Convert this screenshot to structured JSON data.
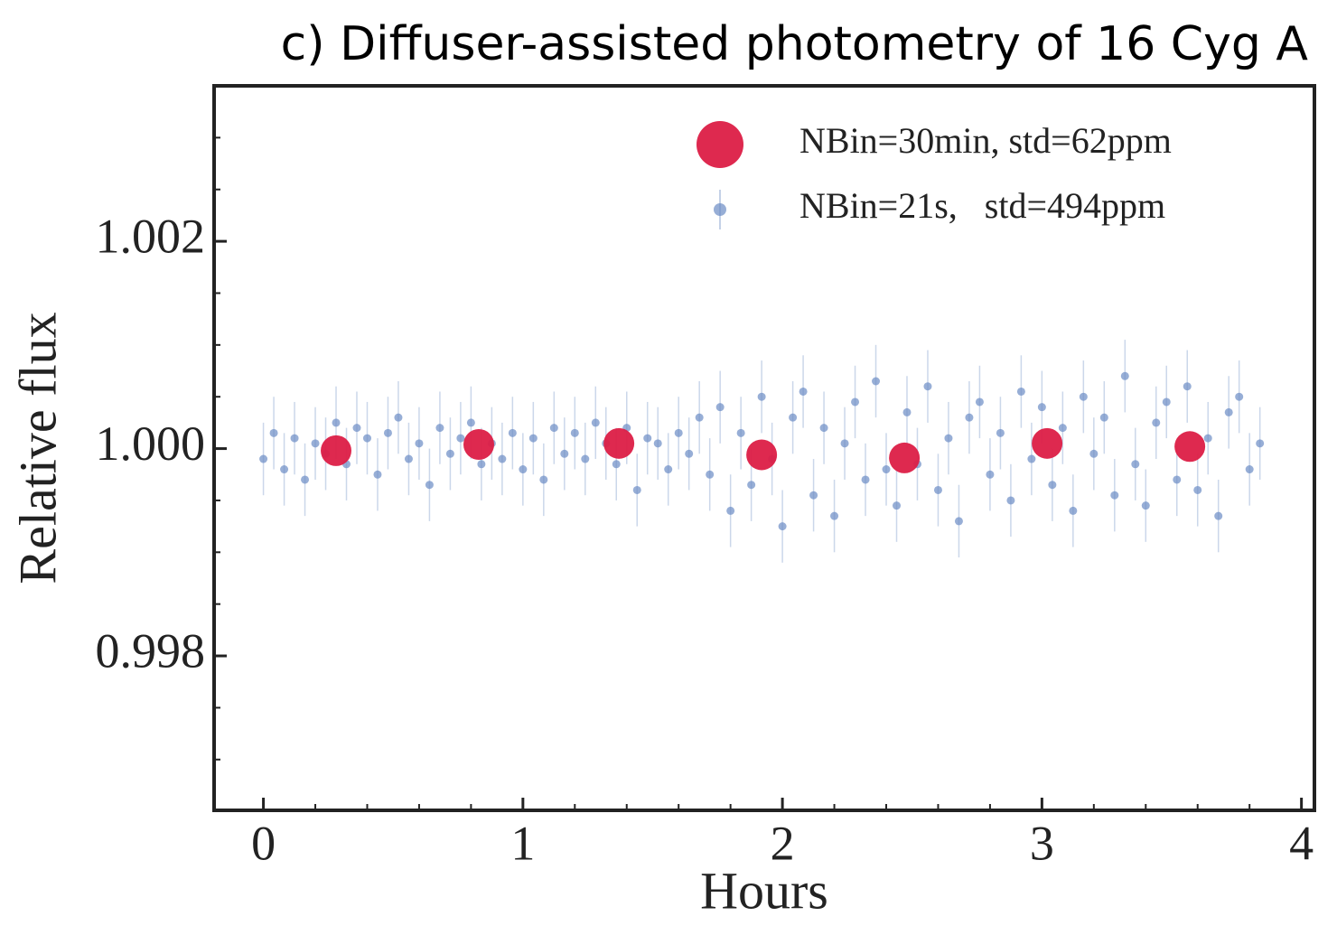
{
  "chart_data": {
    "type": "scatter",
    "title": "c) Diffuser-assisted photometry of 16 Cyg A",
    "xlabel": "Hours",
    "ylabel": "Relative flux",
    "xlim": [
      -0.19,
      4.05
    ],
    "ylim": [
      0.99651,
      1.0035
    ],
    "xticks": [
      0,
      1,
      2,
      3,
      4
    ],
    "yticks": [
      0.998,
      {
        "value": 1,
        "label": "1.000"
      },
      1.002
    ],
    "xminorticks": [
      0.2,
      0.4,
      0.6,
      0.8,
      1.2,
      1.4,
      1.6,
      1.8,
      2.2,
      2.4,
      2.6,
      2.8,
      3.2,
      3.4,
      3.6,
      3.8
    ],
    "yminorticks": [
      0.997,
      0.9975,
      0.9985,
      0.999,
      0.9995,
      1.0005,
      1.001,
      1.0015,
      1.0025,
      1.003
    ],
    "legend": "upper right",
    "series": [
      {
        "name": "NBin=30min, std=62ppm",
        "color": "#dc1e46",
        "size": "large",
        "x": [
          0.28,
          0.83,
          1.37,
          1.92,
          2.47,
          3.02,
          3.57
        ],
        "values": [
          0.99998,
          1.00004,
          1.00005,
          0.99994,
          0.99991,
          1.00005,
          1.00002
        ]
      },
      {
        "name": "NBin=21s,   std=494ppm",
        "color": "#6b8cc4",
        "size": "small",
        "yerr": 0.00035,
        "x": [
          0,
          0.04,
          0.08,
          0.12,
          0.16,
          0.2,
          0.24,
          0.28,
          0.32,
          0.36,
          0.4,
          0.44,
          0.48,
          0.52,
          0.56,
          0.6,
          0.64,
          0.68,
          0.72,
          0.76,
          0.8,
          0.84,
          0.88,
          0.92,
          0.96,
          1,
          1.04,
          1.08,
          1.12,
          1.16,
          1.2,
          1.24,
          1.28,
          1.32,
          1.36,
          1.4,
          1.44,
          1.48,
          1.52,
          1.56,
          1.6,
          1.64,
          1.68,
          1.72,
          1.76,
          1.8,
          1.84,
          1.88,
          1.92,
          1.96,
          2,
          2.04,
          2.08,
          2.12,
          2.16,
          2.2,
          2.24,
          2.28,
          2.32,
          2.36,
          2.4,
          2.44,
          2.48,
          2.52,
          2.56,
          2.6,
          2.64,
          2.68,
          2.72,
          2.76,
          2.8,
          2.84,
          2.88,
          2.92,
          2.96,
          3,
          3.04,
          3.08,
          3.12,
          3.16,
          3.2,
          3.24,
          3.28,
          3.32,
          3.36,
          3.4,
          3.44,
          3.48,
          3.52,
          3.56,
          3.6,
          3.64,
          3.68,
          3.72,
          3.76,
          3.8,
          3.84
        ],
        "values": [
          0.9999,
          1.00015,
          0.9998,
          1.0001,
          0.9997,
          1.00005,
          0.99995,
          1.00025,
          0.99985,
          1.0002,
          1.0001,
          0.99975,
          1.00015,
          1.0003,
          0.9999,
          1.00005,
          0.99965,
          1.0002,
          0.99995,
          1.0001,
          1.00025,
          0.99985,
          1.00005,
          0.9999,
          1.00015,
          0.9998,
          1.0001,
          0.9997,
          1.0002,
          0.99995,
          1.00015,
          0.9999,
          1.00025,
          1.00005,
          0.99985,
          1.0002,
          0.9996,
          1.0001,
          1.00005,
          0.9998,
          1.00015,
          0.99995,
          1.0003,
          0.99975,
          1.0004,
          0.9994,
          1.00015,
          0.99965,
          1.0005,
          0.9999,
          0.99925,
          1.0003,
          1.00055,
          0.99955,
          1.0002,
          0.99935,
          1.00005,
          1.00045,
          0.9997,
          1.00065,
          0.9998,
          0.99945,
          1.00035,
          0.99985,
          1.0006,
          0.9996,
          1.0001,
          0.9993,
          1.0003,
          1.00045,
          0.99975,
          1.00015,
          0.9995,
          1.00055,
          0.9999,
          1.0004,
          0.99965,
          1.0002,
          0.9994,
          1.0005,
          0.99995,
          1.0003,
          0.99955,
          1.0007,
          0.99985,
          0.99945,
          1.00025,
          1.00045,
          0.9997,
          1.0006,
          0.9996,
          1.0001,
          0.99935,
          1.00035,
          1.0005,
          0.9998,
          1.00005
        ]
      }
    ]
  }
}
